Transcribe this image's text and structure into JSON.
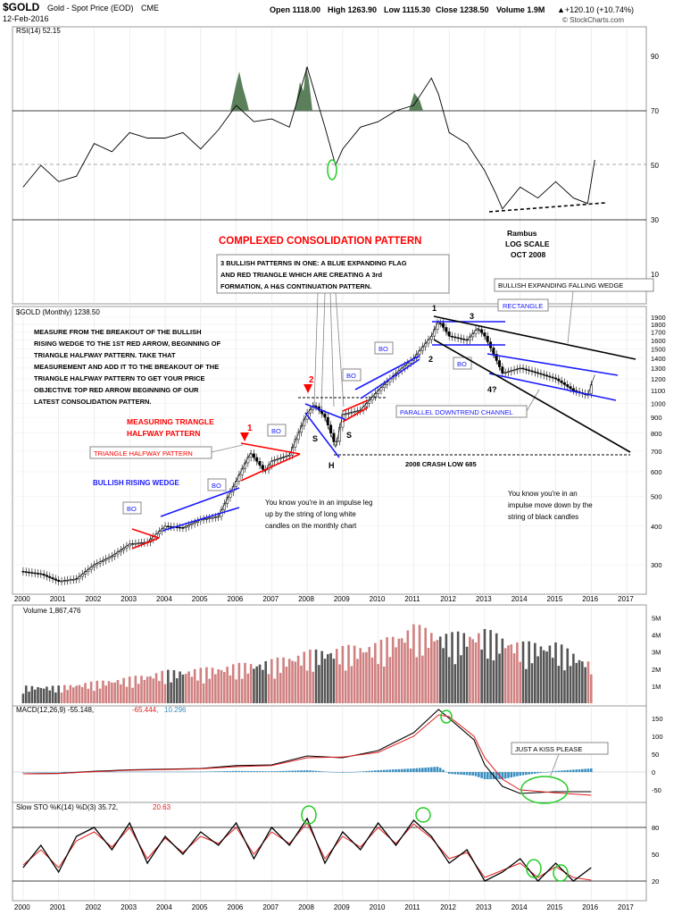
{
  "header": {
    "symbol": "$GOLD",
    "name": "Gold - Spot Price (EOD)",
    "exchange": "CME",
    "date": "12-Feb-2016",
    "open": "Open 1118.00",
    "high": "High 1263.90",
    "low": "Low 1115.30",
    "close": "Close 1238.50",
    "volume": "Volume 1.9M",
    "change": "▲+120.10 (+10.74%)",
    "copyright": "© StockCharts.com"
  },
  "panels": {
    "rsi_label": "RSI(14) 52.15",
    "price_label": "$GOLD (Monthly) 1238.50",
    "volume_label": "Volume 1,867,476",
    "macd_label_prefix": "MACD(12,26,9) -55.148,",
    "macd_signal_val": "-65.444,",
    "macd_hist_val": "10.296",
    "sto_label_prefix": "Slow STO %K(14) %D(3) 35.72,",
    "sto_d_val": "20.63"
  },
  "annotations": {
    "title_red": "COMPLEXED CONSOLIDATION PATTERN",
    "rambus_1": "Rambus",
    "rambus_2": "LOG SCALE",
    "rambus_3": "OCT 2008",
    "box_3bullish_1": "3 BULLISH PATTERNS IN ONE:  A BLUE EXPANDING FLAG",
    "box_3bullish_2": "AND RED TRIANGLE WHICH ARE CREATING A 3rd",
    "box_3bullish_3": "FORMATION, A H&S CONTINUATION PATTERN.",
    "measure_1": "MEASURE FROM THE BREAKOUT OF THE BULLISH",
    "measure_2": "RISING WEDGE TO THE 1ST RED ARROW, BEGINNING OF",
    "measure_3": "TRIANGLE HALFWAY PATTERN. TAKE THAT",
    "measure_4": "MEASUREMENT AND ADD IT TO THE BREAKOUT OF THE",
    "measure_5": "TRIANGLE HALFWAY PATTERN TO GET YOUR PRICE",
    "measure_6": "OBJECTIVE TOP RED ARROW BEGINNING OF OUR",
    "measure_7": "LATEST CONSOLIDATION PATTERN.",
    "measuring_tri_1": "MEASURING TRIANGLE",
    "measuring_tri_2": "HALFWAY PATTERN",
    "triangle_halfway": "TRIANGLE HALFWAY PATTERN",
    "bullish_rising_wedge": "BULLISH RISING WEDGE",
    "bullish_expanding_wedge": "BULLISH EXPANDING FALLING WEDGE",
    "rectangle": "RECTANGLE",
    "parallel_channel": "PARALLEL DOWNTREND CHANNEL",
    "crash_low": "2008 CRASH LOW 685",
    "impulse_up_1": "You know you're in an impulse leg",
    "impulse_up_2": "up by the string of long white",
    "impulse_up_3": "candles on the monthly chart",
    "impulse_down_1": "You know you're in an",
    "impulse_down_2": "impulse move down by the",
    "impulse_down_3": "string of black candles",
    "kiss": "JUST A KISS PLEASE",
    "bo": "BO",
    "num_1": "1",
    "num_2": "2",
    "num_3": "3",
    "num_4q": "4?",
    "hs_s": "S",
    "hs_h": "H",
    "arrow_1": "1",
    "arrow_2": "2"
  },
  "colors": {
    "rsi_fill": "#5b7f5b",
    "price_up": "#000000",
    "vol_up": "#d08080",
    "vol_down": "#000000",
    "macd_line": "#000000",
    "macd_signal": "#e02020",
    "macd_hist": "#3a8fc0",
    "sto_k": "#000000",
    "sto_d": "#e02020",
    "blue_line": "#1a1aff",
    "red_line": "#ff0000",
    "green_circle": "#22cc22"
  },
  "chart_data": [
    {
      "type": "line",
      "panel": "RSI(14)",
      "y_ticks": [
        "90",
        "70",
        "50",
        "30",
        "10"
      ],
      "x_ticks": [
        "2000",
        "2001",
        "2002",
        "2003",
        "2004",
        "2005",
        "2006",
        "2007",
        "2008",
        "2009",
        "2010",
        "2011",
        "2012",
        "2013",
        "2014",
        "2015",
        "2016",
        "2017"
      ],
      "x": [
        2000,
        2000.5,
        2001,
        2001.5,
        2002,
        2002.5,
        2003,
        2003.5,
        2004,
        2004.5,
        2005,
        2005.5,
        2006,
        2006.5,
        2007,
        2007.5,
        2008,
        2008.5,
        2008.8,
        2009,
        2009.5,
        2010,
        2010.5,
        2011,
        2011.5,
        2011.7,
        2012,
        2012.5,
        2013,
        2013.3,
        2013.5,
        2014,
        2014.5,
        2015,
        2015.5,
        2015.9,
        2016.1
      ],
      "values": [
        42,
        50,
        44,
        46,
        58,
        55,
        62,
        60,
        60,
        62,
        56,
        63,
        72,
        66,
        67,
        64,
        86,
        64,
        50,
        56,
        64,
        66,
        70,
        72,
        82,
        76,
        62,
        58,
        48,
        40,
        34,
        42,
        38,
        44,
        38,
        36,
        52
      ]
    },
    {
      "type": "line",
      "panel": "$GOLD (Monthly)",
      "scale": "log",
      "y_ticks": [
        "1900",
        "1800",
        "1700",
        "1600",
        "1500",
        "1400",
        "1300",
        "1200",
        "1100",
        "1000",
        "900",
        "800",
        "700",
        "600",
        "500",
        "400",
        "300"
      ],
      "x": [
        2000,
        2000.5,
        2001,
        2001.5,
        2002,
        2002.5,
        2003,
        2003.5,
        2004,
        2004.5,
        2005,
        2005.5,
        2006,
        2006.4,
        2006.8,
        2007,
        2007.5,
        2008,
        2008.2,
        2008.5,
        2008.8,
        2009,
        2009.5,
        2010,
        2010.5,
        2011,
        2011.5,
        2011.7,
        2012,
        2012.5,
        2012.8,
        2013,
        2013.3,
        2013.5,
        2014,
        2014.5,
        2015,
        2015.5,
        2015.9,
        2016.1
      ],
      "values": [
        285,
        280,
        265,
        270,
        300,
        320,
        350,
        355,
        400,
        395,
        420,
        430,
        560,
        690,
        600,
        650,
        680,
        930,
        990,
        900,
        720,
        920,
        950,
        1100,
        1250,
        1400,
        1650,
        1850,
        1650,
        1600,
        1750,
        1650,
        1400,
        1250,
        1300,
        1250,
        1200,
        1100,
        1060,
        1238
      ]
    },
    {
      "type": "bar",
      "panel": "Volume",
      "y_ticks": [
        "5M",
        "4M",
        "3M",
        "2M",
        "1M"
      ],
      "x": [
        2000,
        2001,
        2002,
        2003,
        2004,
        2005,
        2006,
        2007,
        2008,
        2009,
        2010,
        2011,
        2012,
        2013,
        2014,
        2015,
        2016
      ],
      "values": [
        0.8,
        0.8,
        1.0,
        1.2,
        1.5,
        1.6,
        1.8,
        2.0,
        2.4,
        2.6,
        2.8,
        3.6,
        3.2,
        3.4,
        2.8,
        2.8,
        1.9
      ],
      "unit": "M"
    },
    {
      "type": "line",
      "panel": "MACD(12,26,9)",
      "y_ticks": [
        "150",
        "100",
        "50",
        "0",
        "-50"
      ],
      "x": [
        2000,
        2001,
        2002,
        2003,
        2004,
        2005,
        2006,
        2007,
        2008,
        2009,
        2010,
        2011,
        2011.7,
        2012,
        2012.7,
        2013,
        2013.5,
        2014,
        2015,
        2016
      ],
      "series": [
        {
          "name": "MACD",
          "values": [
            -5,
            -4,
            2,
            6,
            8,
            10,
            18,
            20,
            45,
            40,
            60,
            110,
            175,
            150,
            90,
            20,
            -40,
            -60,
            -55,
            -55
          ]
        },
        {
          "name": "Signal",
          "values": [
            -5,
            -4,
            1,
            5,
            7,
            9,
            15,
            18,
            40,
            42,
            55,
            100,
            160,
            155,
            100,
            40,
            -20,
            -50,
            -58,
            -65
          ]
        }
      ]
    },
    {
      "type": "line",
      "panel": "Slow STO %K(14) %D(3)",
      "y_ticks": [
        "80",
        "50",
        "20"
      ],
      "x": [
        2000,
        2000.5,
        2001,
        2001.5,
        2002,
        2002.5,
        2003,
        2003.5,
        2004,
        2004.5,
        2005,
        2005.5,
        2006,
        2006.5,
        2007,
        2007.5,
        2008,
        2008.5,
        2009,
        2009.5,
        2010,
        2010.5,
        2011,
        2011.5,
        2012,
        2012.5,
        2013,
        2013.5,
        2014,
        2014.5,
        2015,
        2015.5,
        2016
      ],
      "series": [
        {
          "name": "%K",
          "values": [
            35,
            60,
            30,
            70,
            80,
            55,
            85,
            40,
            70,
            50,
            75,
            60,
            85,
            45,
            80,
            60,
            90,
            40,
            75,
            55,
            85,
            60,
            88,
            70,
            40,
            55,
            20,
            30,
            45,
            20,
            40,
            20,
            35
          ]
        },
        {
          "name": "%D",
          "values": [
            38,
            55,
            35,
            65,
            75,
            58,
            80,
            45,
            68,
            52,
            70,
            62,
            80,
            50,
            75,
            62,
            85,
            45,
            70,
            58,
            80,
            62,
            84,
            68,
            45,
            52,
            24,
            32,
            40,
            24,
            36,
            24,
            21
          ]
        }
      ]
    }
  ]
}
